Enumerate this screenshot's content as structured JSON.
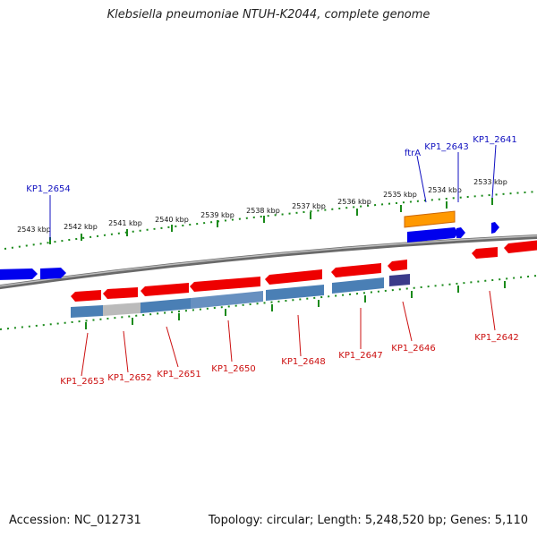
{
  "title": "Klebsiella pneumoniae NTUH-K2044, complete genome",
  "footer": {
    "accession": "Accession: NC_012731",
    "summary": "Topology: circular; Length: 5,248,520 bp; Genes: 5,110"
  },
  "colors": {
    "forward_gene": "#0000ee",
    "reverse_gene": "#ee0000",
    "rna_gene": "#ff9900",
    "cds_bar": "#4a7fb5",
    "pseudo_bar": "#bbbbbb",
    "dark_bar": "#3b3b8a",
    "backbone": "#888888",
    "ruler": "#1a8a1a",
    "forward_label": "#1010c0",
    "reverse_label": "#cc1010"
  },
  "ruler_labels": [
    "2543 kbp",
    "2542 kbp",
    "2541 kbp",
    "2540 kbp",
    "2539 kbp",
    "2538 kbp",
    "2537 kbp",
    "2536 kbp",
    "2535 kbp",
    "2534 kbp",
    "2533 kbp"
  ],
  "forward_labels": [
    "KP1_2654",
    "ftrA",
    "KP1_2643",
    "KP1_2641"
  ],
  "reverse_labels": [
    "KP1_2653",
    "KP1_2652",
    "KP1_2651",
    "KP1_2650",
    "KP1_2648",
    "KP1_2647",
    "KP1_2646",
    "KP1_2642"
  ]
}
